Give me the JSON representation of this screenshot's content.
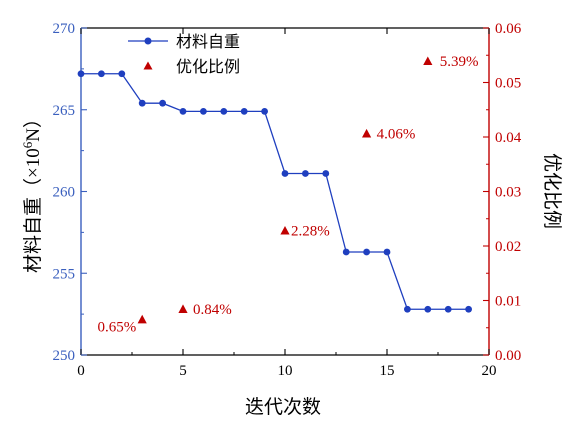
{
  "colors": {
    "left_axis": "#3a5fbe",
    "right_axis": "#c00000",
    "line_series": "#1f3fbf",
    "marker_series": "#c00000",
    "bottom_axis": "#000000"
  },
  "chart_data": {
    "type": "line",
    "xlabel": "迭代次数",
    "ylabel_left_base": "材料自重（×10",
    "ylabel_left_sup": "6",
    "ylabel_left_tail": "N）",
    "ylabel_right": "优化比例",
    "xlim": [
      0,
      20
    ],
    "xticks": [
      "0",
      "5",
      "10",
      "15",
      "20"
    ],
    "ylim_left": [
      250,
      270
    ],
    "yticks_left": [
      "250",
      "255",
      "260",
      "265",
      "270"
    ],
    "ylim_right": [
      0,
      0.06
    ],
    "yticks_right": [
      "0.00",
      "0.01",
      "0.02",
      "0.03",
      "0.04",
      "0.05",
      "0.06"
    ],
    "grid": false,
    "legend_position": "top-left",
    "series": [
      {
        "name": "材料自重",
        "kind": "line",
        "axis": "left",
        "x": [
          0,
          1,
          2,
          3,
          4,
          5,
          6,
          7,
          8,
          9,
          10,
          11,
          12,
          13,
          14,
          15,
          16,
          17,
          18,
          19
        ],
        "y": [
          267.2,
          267.2,
          267.2,
          265.4,
          265.4,
          264.9,
          264.9,
          264.9,
          264.9,
          264.9,
          261.1,
          261.1,
          261.1,
          256.3,
          256.3,
          256.3,
          252.8,
          252.8,
          252.8,
          252.8
        ]
      },
      {
        "name": "优化比例",
        "kind": "scatter",
        "axis": "right",
        "x": [
          3,
          5,
          10,
          14,
          17
        ],
        "y": [
          0.0065,
          0.0084,
          0.0228,
          0.0406,
          0.0539
        ],
        "labels": [
          "0.65%",
          "0.84%",
          "2.28%",
          "4.06%",
          "5.39%"
        ]
      }
    ]
  }
}
